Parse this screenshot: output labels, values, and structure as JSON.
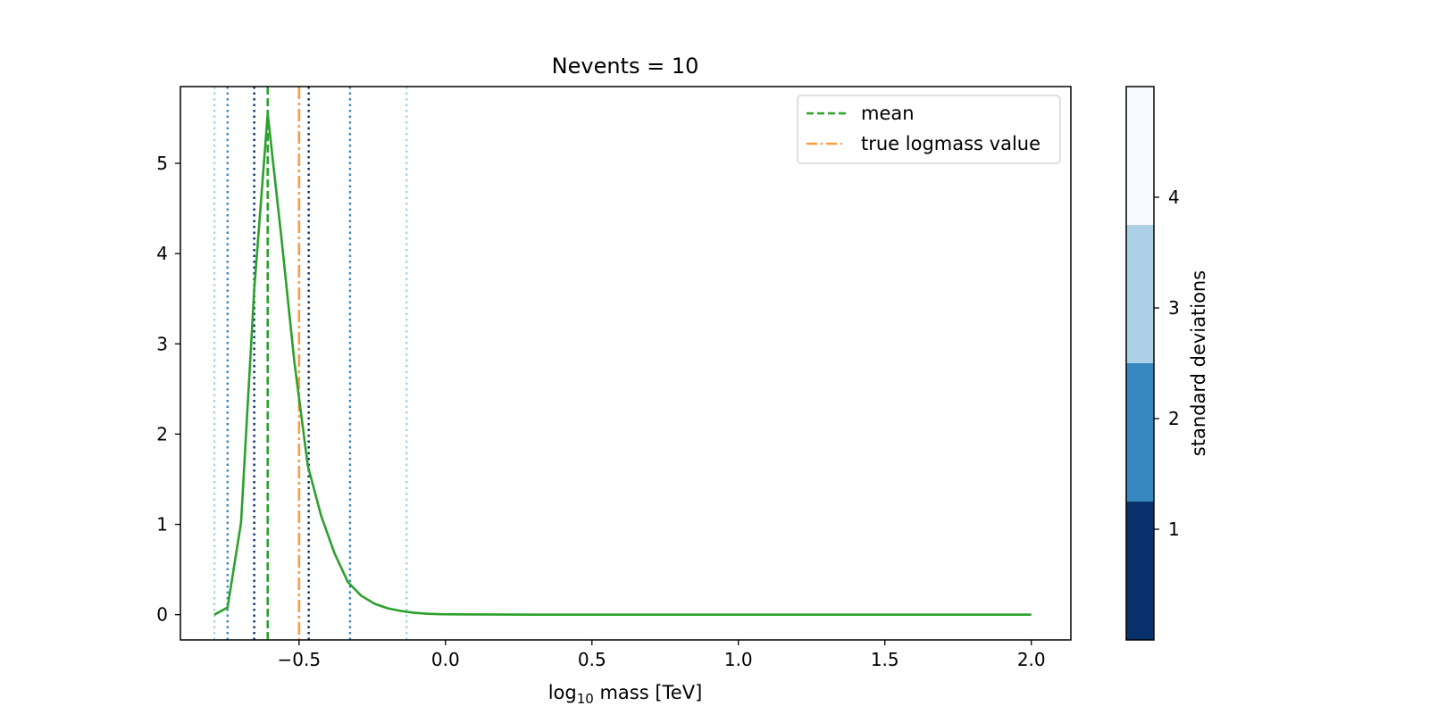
{
  "chart_data": {
    "type": "line",
    "title": "Nevents = 10",
    "xlabel": {
      "prefix": "log",
      "subscript": "10",
      "suffix": " mass [TeV]"
    },
    "ylabel": "",
    "xlim": [
      -0.905,
      2.135
    ],
    "ylim": [
      -0.28,
      5.85
    ],
    "xticks": [
      -0.5,
      0.0,
      0.5,
      1.0,
      1.5,
      2.0
    ],
    "xtick_labels": [
      "−0.5",
      "0.0",
      "0.5",
      "1.0",
      "1.5",
      "2.0"
    ],
    "yticks": [
      0,
      1,
      2,
      3,
      4,
      5
    ],
    "ytick_labels": [
      "0",
      "1",
      "2",
      "3",
      "4",
      "5"
    ],
    "grid": false,
    "legend_position": "top-right",
    "series": [
      {
        "color": "#2ca02c",
        "x": [
          -0.789,
          -0.744,
          -0.698,
          -0.653,
          -0.607,
          -0.561,
          -0.516,
          -0.47,
          -0.425,
          -0.379,
          -0.333,
          -0.288,
          -0.242,
          -0.197,
          -0.151,
          -0.105,
          -0.06,
          -0.014,
          0.1,
          0.3,
          0.5,
          1.0,
          1.5,
          2.0
        ],
        "y": [
          0.0,
          0.08,
          1.02,
          3.6,
          5.55,
          4.2,
          2.8,
          1.65,
          1.1,
          0.68,
          0.36,
          0.21,
          0.12,
          0.07,
          0.04,
          0.02,
          0.01,
          0.005,
          0.002,
          0.0,
          0.0,
          0.0,
          0.0,
          0.0
        ]
      }
    ],
    "vertical_lines": [
      {
        "label": "mean",
        "x": -0.607,
        "color": "#2ca02c",
        "style": "dashed"
      },
      {
        "label": "true logmass value",
        "x": -0.5,
        "color": "#ff9a40",
        "style": "dashdot"
      }
    ],
    "sigma_lines": [
      {
        "sigma": 1,
        "x": [
          -0.653,
          -0.467
        ],
        "color": "#08306b"
      },
      {
        "sigma": 2,
        "x": [
          -0.744,
          -0.326
        ],
        "color": "#3787c0"
      },
      {
        "sigma": 3,
        "x": [
          -0.789,
          -0.133
        ],
        "color": "#abd0e6"
      }
    ],
    "colorbar": {
      "label": "standard deviations",
      "range": [
        0,
        5
      ],
      "bands": [
        {
          "from": 0,
          "to": 1.25,
          "color": "#08306b"
        },
        {
          "from": 1.25,
          "to": 2.5,
          "color": "#3787c0"
        },
        {
          "from": 2.5,
          "to": 3.75,
          "color": "#abd0e6"
        },
        {
          "from": 3.75,
          "to": 5,
          "color": "#f7fbff"
        }
      ],
      "ticks": [
        1,
        2,
        3,
        4
      ],
      "tick_labels": [
        "1",
        "2",
        "3",
        "4"
      ]
    }
  }
}
